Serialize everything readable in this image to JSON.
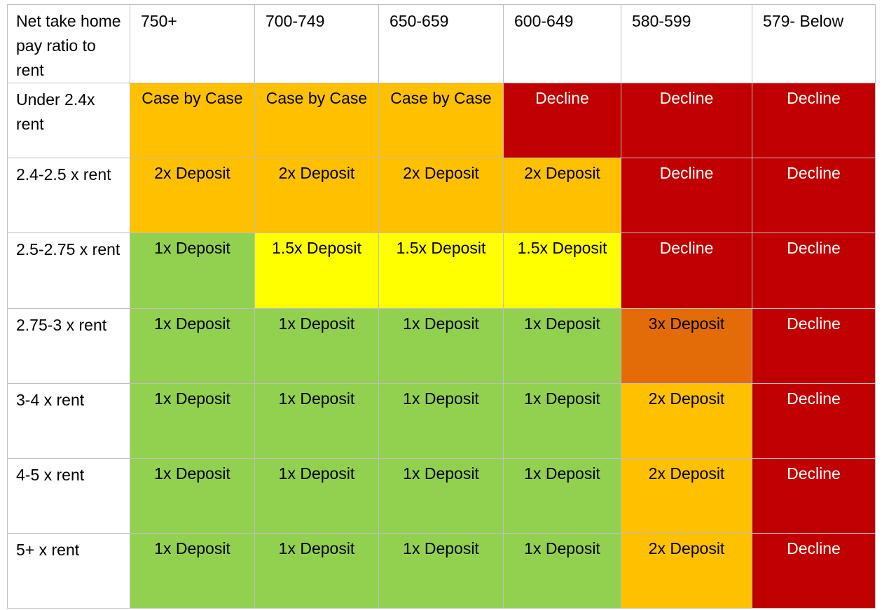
{
  "table": {
    "corner_label": "Net take home pay ratio to rent",
    "columns": [
      "750+",
      "700-749",
      "650-659",
      "600-649",
      "580-599",
      "579- Below"
    ],
    "rows": [
      {
        "label": "Under 2.4x rent",
        "cells": [
          {
            "text": "Case by Case",
            "level": "orange"
          },
          {
            "text": "Case by Case",
            "level": "orange"
          },
          {
            "text": "Case by Case",
            "level": "orange"
          },
          {
            "text": "Decline",
            "level": "red"
          },
          {
            "text": "Decline",
            "level": "red"
          },
          {
            "text": "Decline",
            "level": "red"
          }
        ]
      },
      {
        "label": "2.4-2.5 x rent",
        "cells": [
          {
            "text": "2x Deposit",
            "level": "orange"
          },
          {
            "text": "2x Deposit",
            "level": "orange"
          },
          {
            "text": "2x Deposit",
            "level": "orange"
          },
          {
            "text": "2x Deposit",
            "level": "orange"
          },
          {
            "text": "Decline",
            "level": "red"
          },
          {
            "text": "Decline",
            "level": "red"
          }
        ]
      },
      {
        "label": "2.5-2.75 x rent",
        "cells": [
          {
            "text": "1x Deposit",
            "level": "green"
          },
          {
            "text": "1.5x Deposit",
            "level": "yellow"
          },
          {
            "text": "1.5x Deposit",
            "level": "yellow"
          },
          {
            "text": "1.5x Deposit",
            "level": "yellow"
          },
          {
            "text": "Decline",
            "level": "red"
          },
          {
            "text": "Decline",
            "level": "red"
          }
        ]
      },
      {
        "label": "2.75-3 x rent",
        "cells": [
          {
            "text": "1x Deposit",
            "level": "green"
          },
          {
            "text": "1x Deposit",
            "level": "green"
          },
          {
            "text": "1x Deposit",
            "level": "green"
          },
          {
            "text": "1x Deposit",
            "level": "green"
          },
          {
            "text": "3x Deposit",
            "level": "dark-orange"
          },
          {
            "text": "Decline",
            "level": "red"
          }
        ]
      },
      {
        "label": "3-4 x rent",
        "cells": [
          {
            "text": "1x Deposit",
            "level": "green"
          },
          {
            "text": "1x Deposit",
            "level": "green"
          },
          {
            "text": "1x Deposit",
            "level": "green"
          },
          {
            "text": "1x Deposit",
            "level": "green"
          },
          {
            "text": "2x Deposit",
            "level": "orange"
          },
          {
            "text": "Decline",
            "level": "red"
          }
        ]
      },
      {
        "label": "4-5 x rent",
        "cells": [
          {
            "text": "1x Deposit",
            "level": "green"
          },
          {
            "text": "1x Deposit",
            "level": "green"
          },
          {
            "text": "1x Deposit",
            "level": "green"
          },
          {
            "text": "1x Deposit",
            "level": "green"
          },
          {
            "text": "2x Deposit",
            "level": "orange"
          },
          {
            "text": "Decline",
            "level": "red"
          }
        ]
      },
      {
        "label": "5+ x rent",
        "cells": [
          {
            "text": "1x Deposit",
            "level": "green"
          },
          {
            "text": "1x Deposit",
            "level": "green"
          },
          {
            "text": "1x Deposit",
            "level": "green"
          },
          {
            "text": "1x Deposit",
            "level": "green"
          },
          {
            "text": "2x Deposit",
            "level": "orange"
          },
          {
            "text": "Decline",
            "level": "red"
          }
        ]
      }
    ]
  },
  "colors": {
    "orange": "#ffc000",
    "red": "#c00000",
    "green": "#92d050",
    "yellow": "#ffff00",
    "dark-orange": "#e36c09",
    "border": "#bfbfbf"
  }
}
